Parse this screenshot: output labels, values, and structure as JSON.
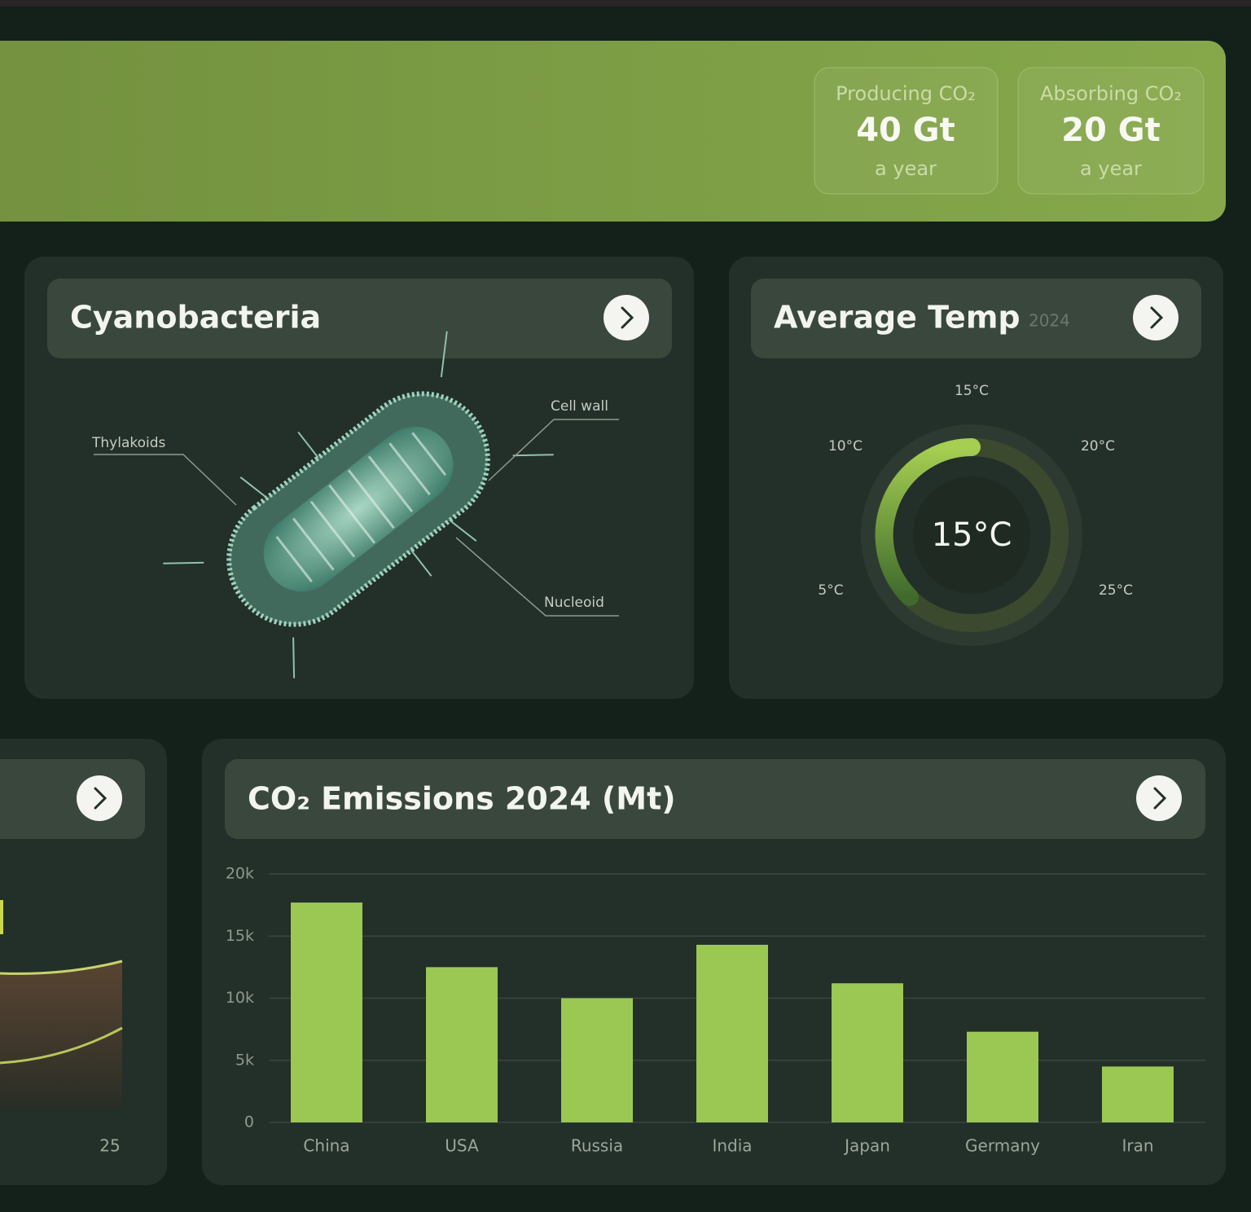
{
  "header": {
    "stats": [
      {
        "label": "Producing CO₂",
        "value": "40 Gt",
        "unit": "a year"
      },
      {
        "label": "Absorbing CO₂",
        "value": "20 Gt",
        "unit": "a year"
      }
    ]
  },
  "cyanobacteria": {
    "title": "Cyanobacteria",
    "labels": [
      "Thylakoids",
      "Cell wall",
      "Nucleoid"
    ]
  },
  "temperature": {
    "title": "Average Temp",
    "year": "2024",
    "value": "15°C",
    "scale": [
      "5°C",
      "10°C",
      "15°C",
      "20°C",
      "25°C"
    ]
  },
  "partial_card": {
    "x_label": "25"
  },
  "chart_data": {
    "type": "bar",
    "title": "CO₂ Emissions 2024 (Mt)",
    "categories": [
      "China",
      "USA",
      "Russia",
      "India",
      "Japan",
      "Germany",
      "Iran"
    ],
    "values": [
      17700,
      12500,
      10000,
      14300,
      11200,
      7300,
      4500
    ],
    "color": "#9bc853",
    "ylim": [
      0,
      20000
    ],
    "yticks": [
      0,
      {
        "value": 5000,
        "label": "5k"
      },
      {
        "value": 10000,
        "label": "10k"
      },
      {
        "value": 15000,
        "label": "15k"
      },
      {
        "value": 20000,
        "label": "20k"
      }
    ],
    "grid": true
  }
}
